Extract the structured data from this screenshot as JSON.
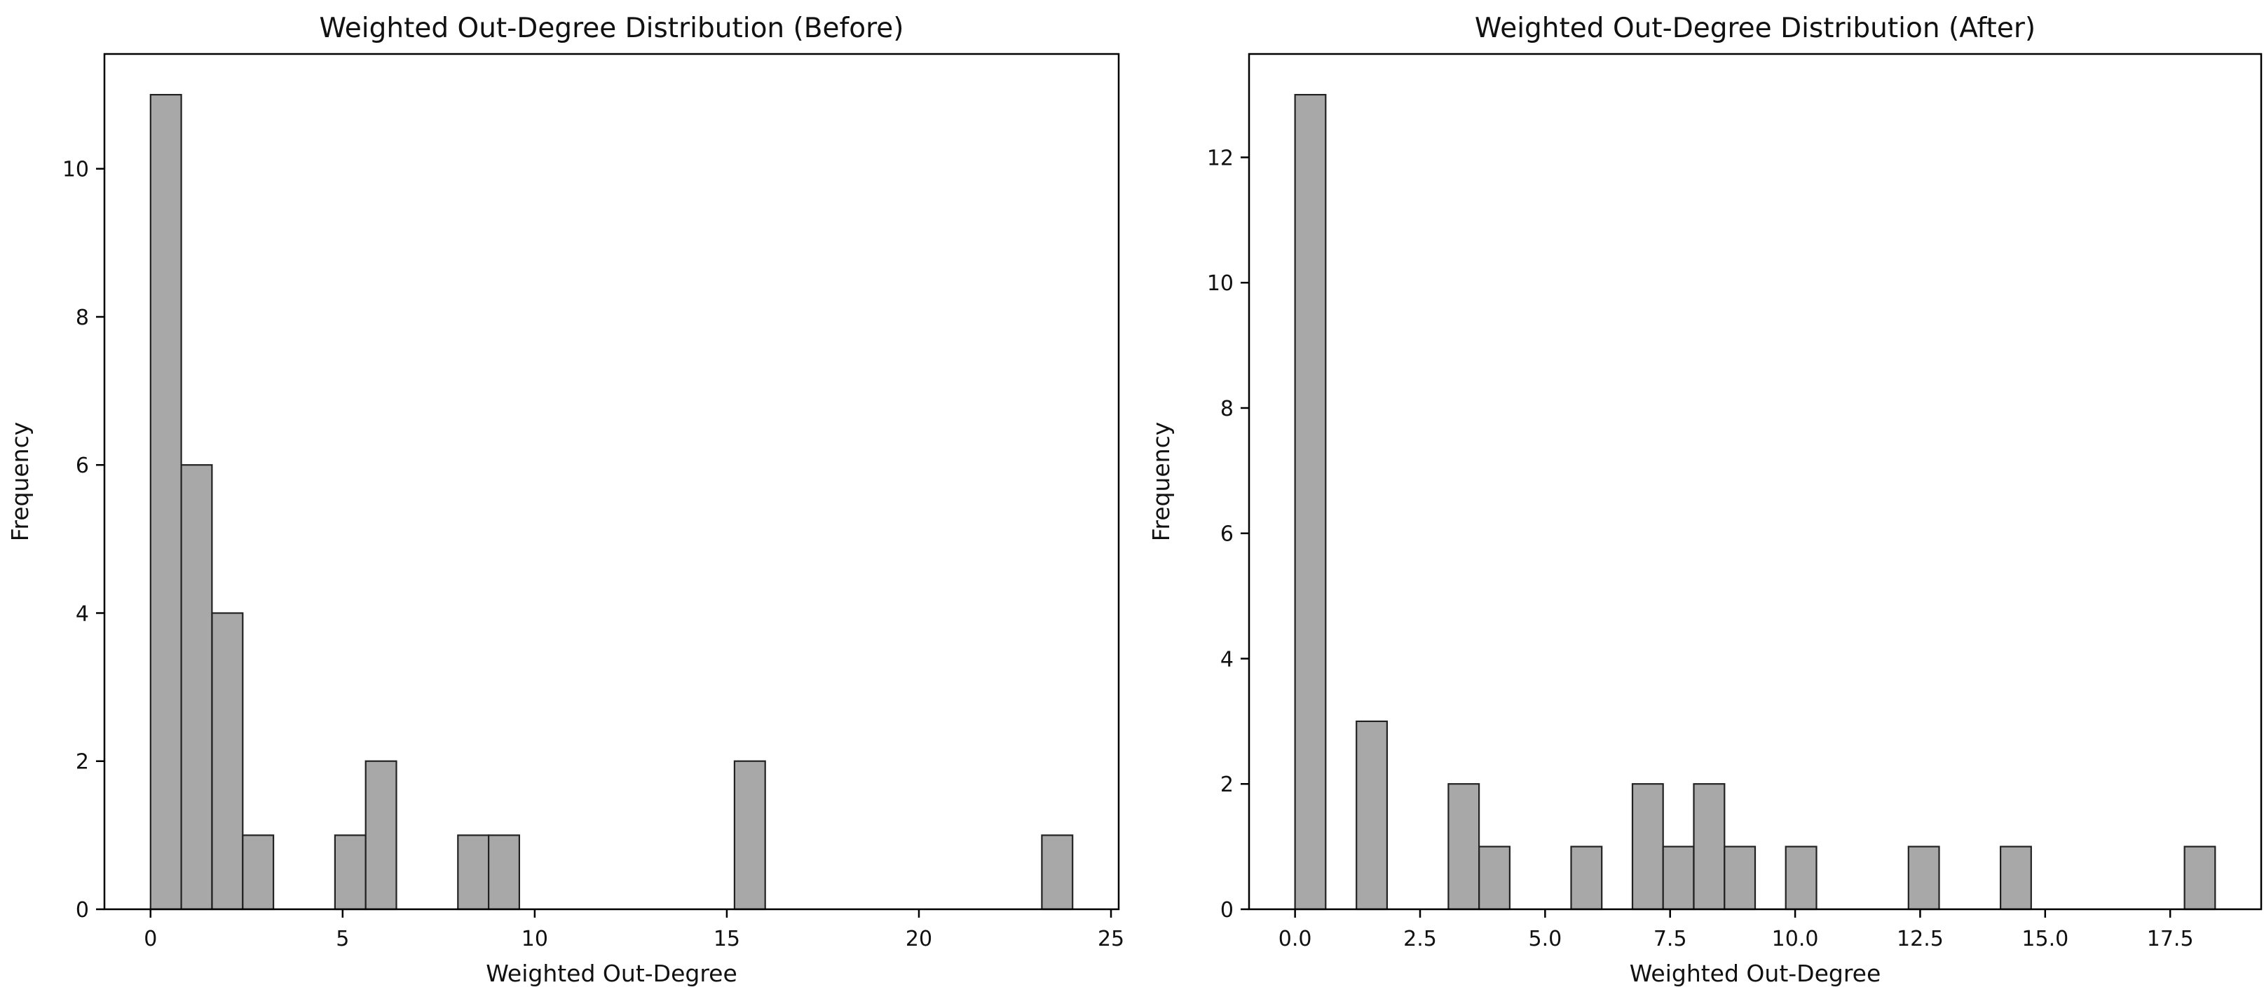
{
  "figure": {
    "background": "#ffffff",
    "bar_fill": "#a8a8a8",
    "bar_edge": "#222222",
    "axis_color": "#000000",
    "text_color": "#111111"
  },
  "chart_data": [
    {
      "type": "bar",
      "subtype": "histogram",
      "title": "Weighted Out-Degree Distribution (Before)",
      "xlabel": "Weighted Out-Degree",
      "ylabel": "Frequency",
      "grid": false,
      "legend": null,
      "xlim": [
        -1.2,
        25.2
      ],
      "ylim": [
        0,
        11.55
      ],
      "bin_width": 0.8,
      "bars": [
        {
          "x0": 0.0,
          "x1": 0.8,
          "count": 11
        },
        {
          "x0": 0.8,
          "x1": 1.6,
          "count": 6
        },
        {
          "x0": 1.6,
          "x1": 2.4,
          "count": 4
        },
        {
          "x0": 2.4,
          "x1": 3.2,
          "count": 1
        },
        {
          "x0": 4.8,
          "x1": 5.6,
          "count": 1
        },
        {
          "x0": 5.6,
          "x1": 6.4,
          "count": 2
        },
        {
          "x0": 8.0,
          "x1": 8.8,
          "count": 1
        },
        {
          "x0": 8.8,
          "x1": 9.6,
          "count": 1
        },
        {
          "x0": 15.2,
          "x1": 16.0,
          "count": 2
        },
        {
          "x0": 23.2,
          "x1": 24.0,
          "count": 1
        }
      ],
      "xticks": [
        {
          "v": 0,
          "label": "0"
        },
        {
          "v": 5,
          "label": "5"
        },
        {
          "v": 10,
          "label": "10"
        },
        {
          "v": 15,
          "label": "15"
        },
        {
          "v": 20,
          "label": "20"
        },
        {
          "v": 25,
          "label": "25"
        }
      ],
      "yticks": [
        {
          "v": 0,
          "label": "0"
        },
        {
          "v": 2,
          "label": "2"
        },
        {
          "v": 4,
          "label": "4"
        },
        {
          "v": 6,
          "label": "6"
        },
        {
          "v": 8,
          "label": "8"
        },
        {
          "v": 10,
          "label": "10"
        }
      ]
    },
    {
      "type": "bar",
      "subtype": "histogram",
      "title": "Weighted Out-Degree Distribution (After)",
      "xlabel": "Weighted Out-Degree",
      "ylabel": "Frequency",
      "grid": false,
      "legend": null,
      "xlim": [
        -0.92,
        19.32
      ],
      "ylim": [
        0,
        13.65
      ],
      "bin_width": 0.613,
      "bars": [
        {
          "x0": 0.0,
          "x1": 0.613,
          "count": 13
        },
        {
          "x0": 1.227,
          "x1": 1.84,
          "count": 3
        },
        {
          "x0": 3.067,
          "x1": 3.68,
          "count": 2
        },
        {
          "x0": 3.68,
          "x1": 4.293,
          "count": 1
        },
        {
          "x0": 5.52,
          "x1": 6.133,
          "count": 1
        },
        {
          "x0": 6.747,
          "x1": 7.36,
          "count": 2
        },
        {
          "x0": 7.36,
          "x1": 7.973,
          "count": 1
        },
        {
          "x0": 7.973,
          "x1": 8.587,
          "count": 2
        },
        {
          "x0": 8.587,
          "x1": 9.2,
          "count": 1
        },
        {
          "x0": 9.813,
          "x1": 10.427,
          "count": 1
        },
        {
          "x0": 12.267,
          "x1": 12.88,
          "count": 1
        },
        {
          "x0": 14.107,
          "x1": 14.72,
          "count": 1
        },
        {
          "x0": 17.787,
          "x1": 18.4,
          "count": 1
        }
      ],
      "xticks": [
        {
          "v": 0,
          "label": "0.0"
        },
        {
          "v": 2.5,
          "label": "2.5"
        },
        {
          "v": 5,
          "label": "5.0"
        },
        {
          "v": 7.5,
          "label": "7.5"
        },
        {
          "v": 10,
          "label": "10.0"
        },
        {
          "v": 12.5,
          "label": "12.5"
        },
        {
          "v": 15,
          "label": "15.0"
        },
        {
          "v": 17.5,
          "label": "17.5"
        }
      ],
      "yticks": [
        {
          "v": 0,
          "label": "0"
        },
        {
          "v": 2,
          "label": "2"
        },
        {
          "v": 4,
          "label": "4"
        },
        {
          "v": 6,
          "label": "6"
        },
        {
          "v": 8,
          "label": "8"
        },
        {
          "v": 10,
          "label": "10"
        },
        {
          "v": 12,
          "label": "12"
        }
      ]
    }
  ]
}
